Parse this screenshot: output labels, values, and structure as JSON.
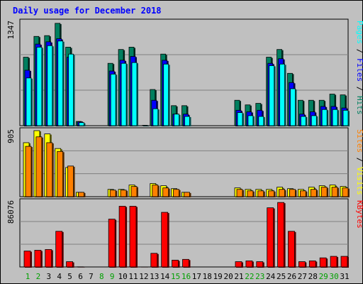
{
  "title": "Daily usage for December 2018",
  "chart_data": [
    {
      "type": "bar",
      "panel": "hits-files-pages",
      "y_max_label": "1347",
      "ylim": [
        0,
        1347
      ],
      "x": [
        "1",
        "2",
        "3",
        "4",
        "5",
        "6",
        "7",
        "8",
        "9",
        "10",
        "11",
        "12",
        "13",
        "14",
        "15",
        "16",
        "17",
        "18",
        "19",
        "20",
        "21",
        "22",
        "23",
        "24",
        "25",
        "26",
        "27",
        "28",
        "29",
        "30",
        "31"
      ],
      "weekend_days": [
        "1",
        "2",
        "8",
        "9",
        "15",
        "16",
        "22",
        "23",
        "29",
        "30"
      ],
      "legend": {
        "text_a": "Pages",
        "sep1": " / ",
        "text_b": "Files",
        "sep2": " / ",
        "text_c": "Hits"
      },
      "series": [
        {
          "name": "Hits",
          "color": "#007f5f",
          "values": [
            890,
            1160,
            1170,
            1330,
            1020,
            55,
            0,
            0,
            810,
            990,
            1020,
            0,
            470,
            930,
            260,
            260,
            0,
            0,
            0,
            0,
            330,
            270,
            290,
            890,
            990,
            680,
            330,
            330,
            330,
            410,
            400
          ]
        },
        {
          "name": "Files",
          "color": "#0000ff",
          "values": [
            720,
            1060,
            1090,
            1130,
            890,
            50,
            0,
            0,
            710,
            850,
            900,
            0,
            330,
            850,
            150,
            150,
            0,
            0,
            0,
            0,
            200,
            180,
            200,
            810,
            870,
            560,
            150,
            180,
            250,
            250,
            230
          ]
        },
        {
          "name": "Pages",
          "color": "#00ffff",
          "values": [
            620,
            1020,
            1040,
            1100,
            930,
            40,
            0,
            0,
            670,
            810,
            820,
            5,
            220,
            800,
            150,
            120,
            0,
            0,
            0,
            0,
            170,
            130,
            120,
            780,
            800,
            480,
            120,
            130,
            210,
            210,
            200
          ]
        }
      ]
    },
    {
      "type": "bar",
      "panel": "visits-sites",
      "y_max_label": "905",
      "ylim": [
        0,
        905
      ],
      "legend": {
        "text_a": "Sites",
        "sep1": " / ",
        "text_b": "Visits"
      },
      "series": [
        {
          "name": "Visits",
          "color": "#ffff00",
          "values": [
            740,
            905,
            860,
            660,
            400,
            60,
            0,
            0,
            100,
            100,
            160,
            0,
            180,
            150,
            110,
            60,
            0,
            0,
            0,
            0,
            120,
            100,
            100,
            100,
            130,
            110,
            100,
            130,
            150,
            160,
            140
          ]
        },
        {
          "name": "Sites",
          "color": "#ff8000",
          "values": [
            690,
            820,
            740,
            620,
            420,
            60,
            0,
            0,
            90,
            90,
            140,
            0,
            160,
            120,
            100,
            60,
            0,
            0,
            0,
            0,
            100,
            80,
            80,
            80,
            100,
            100,
            80,
            100,
            130,
            130,
            120
          ]
        }
      ]
    },
    {
      "type": "bar",
      "panel": "kbytes",
      "y_max_label": "86076",
      "ylim": [
        0,
        86076
      ],
      "legend": {
        "text_a": "KBytes"
      },
      "series": [
        {
          "name": "KBytes",
          "color": "#ff0000",
          "values": [
            21000,
            22000,
            23000,
            47000,
            7000,
            200,
            0,
            0,
            63000,
            80000,
            80000,
            100,
            18000,
            72000,
            9000,
            10000,
            0,
            0,
            0,
            0,
            7000,
            8000,
            7000,
            78000,
            85000,
            47000,
            7000,
            8000,
            12000,
            14000,
            14000
          ]
        }
      ]
    }
  ]
}
